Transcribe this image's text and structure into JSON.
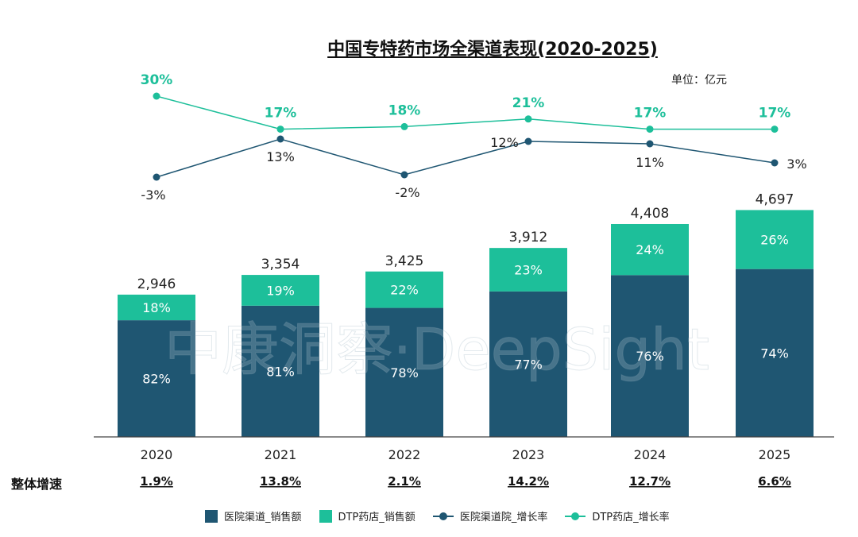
{
  "chart_data": {
    "type": "bar",
    "title": "中国专特药市场全渠道表现(2020-2025)",
    "unit": "单位：亿元",
    "watermark": "中康洞察·DeepSight",
    "categories": [
      "2020",
      "2021",
      "2022",
      "2023",
      "2024",
      "2025"
    ],
    "totals": [
      2946,
      3354,
      3425,
      3912,
      4408,
      4697
    ],
    "total_labels": [
      "2,946",
      "3,354",
      "3,425",
      "3,912",
      "4,408",
      "4,697"
    ],
    "series": [
      {
        "name": "医院渠道_销售额",
        "type": "stacked-bar",
        "color": "#1f5672",
        "share_pct": [
          82,
          81,
          78,
          77,
          76,
          74
        ]
      },
      {
        "name": "DTP药店_销售额",
        "type": "stacked-bar",
        "color": "#1dbf9a",
        "share_pct": [
          18,
          19,
          22,
          23,
          24,
          26
        ]
      },
      {
        "name": "医院渠道院_增长率",
        "type": "line",
        "color": "#1f5672",
        "values_pct": [
          -3,
          13,
          -2,
          12,
          11,
          3
        ]
      },
      {
        "name": "DTP药店_增长率",
        "type": "line",
        "color": "#1dbf9a",
        "values_pct": [
          30,
          17,
          18,
          21,
          17,
          17
        ]
      }
    ],
    "overall_growth": {
      "label": "整体增速",
      "values": [
        "1.9%",
        "13.8%",
        "2.1%",
        "14.2%",
        "12.7%",
        "6.6%"
      ]
    }
  }
}
